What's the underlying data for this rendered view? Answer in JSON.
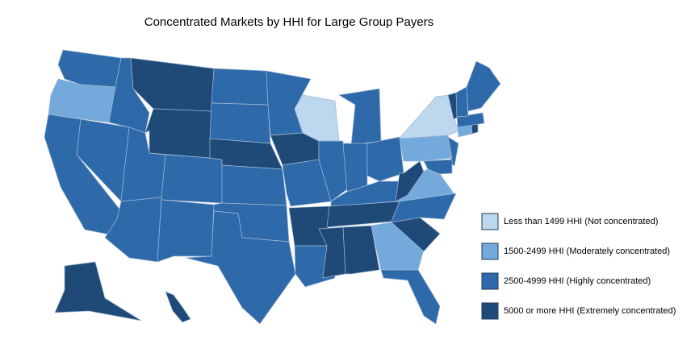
{
  "title": "Concentrated Markets by HHI for Large Group Payers",
  "legend": [
    {
      "label": "Less than 1499 HHI (Not concentrated)",
      "color": "#bdd7ee"
    },
    {
      "label": "1500-2499 HHI (Moderately concentrated)",
      "color": "#74a9dc"
    },
    {
      "label": "2500-4999 HHI (Highly concentrated)",
      "color": "#2e69a9"
    },
    {
      "label": "5000 or more HHI (Extremely concentrated)",
      "color": "#1f4a78"
    }
  ],
  "regions": [
    {
      "id": "WA",
      "class": 2
    },
    {
      "id": "OR",
      "class": 1
    },
    {
      "id": "CA",
      "class": 2
    },
    {
      "id": "NV",
      "class": 2
    },
    {
      "id": "ID",
      "class": 2
    },
    {
      "id": "MT",
      "class": 3
    },
    {
      "id": "WY",
      "class": 3
    },
    {
      "id": "UT",
      "class": 2
    },
    {
      "id": "AZ",
      "class": 2
    },
    {
      "id": "CO",
      "class": 2
    },
    {
      "id": "NM",
      "class": 2
    },
    {
      "id": "ND",
      "class": 2
    },
    {
      "id": "SD",
      "class": 2
    },
    {
      "id": "NE",
      "class": 3
    },
    {
      "id": "KS",
      "class": 2
    },
    {
      "id": "OK",
      "class": 2
    },
    {
      "id": "TX",
      "class": 2
    },
    {
      "id": "MN",
      "class": 2
    },
    {
      "id": "IA",
      "class": 3
    },
    {
      "id": "MO",
      "class": 2
    },
    {
      "id": "AR",
      "class": 3
    },
    {
      "id": "LA",
      "class": 2
    },
    {
      "id": "WI",
      "class": 0
    },
    {
      "id": "IL",
      "class": 2
    },
    {
      "id": "MI",
      "class": 2
    },
    {
      "id": "IN",
      "class": 2
    },
    {
      "id": "OH",
      "class": 2
    },
    {
      "id": "KY",
      "class": 2
    },
    {
      "id": "TN",
      "class": 3
    },
    {
      "id": "MS",
      "class": 3
    },
    {
      "id": "AL",
      "class": 3
    },
    {
      "id": "GA",
      "class": 1
    },
    {
      "id": "FL",
      "class": 2
    },
    {
      "id": "SC",
      "class": 3
    },
    {
      "id": "NC",
      "class": 2
    },
    {
      "id": "VA",
      "class": 1
    },
    {
      "id": "WV",
      "class": 3
    },
    {
      "id": "PA",
      "class": 1
    },
    {
      "id": "NY",
      "class": 0
    },
    {
      "id": "NJ",
      "class": 2
    },
    {
      "id": "MD",
      "class": 2
    },
    {
      "id": "CT",
      "class": 1
    },
    {
      "id": "RI",
      "class": 3
    },
    {
      "id": "MA",
      "class": 2
    },
    {
      "id": "VT",
      "class": 3
    },
    {
      "id": "NH",
      "class": 2
    },
    {
      "id": "ME",
      "class": 2
    },
    {
      "id": "AK",
      "class": 3
    },
    {
      "id": "HI",
      "class": 3
    }
  ]
}
